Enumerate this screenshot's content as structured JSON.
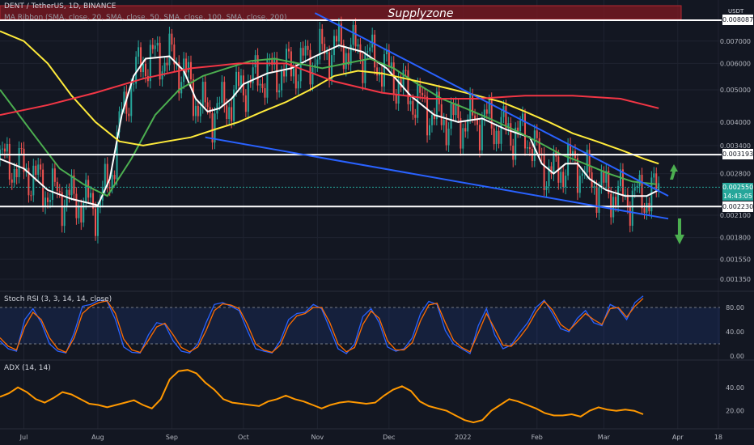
{
  "header": {
    "symbol_line": "DENT / TetherUS, 1D, BINANCE",
    "ribbon_line": "MA Ribbon (SMA, close, 20, SMA, close, 50, SMA, close, 100, SMA, close, 200)"
  },
  "supply_zone_label": "Supplyzone",
  "currency": "USDT",
  "rsi_title": "Stoch RSI (3, 3, 14, 14, close)",
  "adx_title": "ADX (14, 14)",
  "price_badge": {
    "value": "0.002550",
    "countdown": "14:43:05"
  },
  "level_labels": {
    "top": "0.008087",
    "upper": "0.003193",
    "lower": "0.002230"
  },
  "colors": {
    "up": "#26a69a",
    "down": "#ef5350",
    "sma20": "#ffffff",
    "sma50": "#4caf50",
    "sma100": "#ffeb3b",
    "sma200": "#f23645",
    "trend": "#2962ff",
    "stoch_k": "#2962ff",
    "stoch_d": "#ff6d00",
    "adx": "#ff9800",
    "supply": "#801922",
    "arrow": "#4caf50"
  },
  "chart_data": [
    {
      "type": "candlestick",
      "title": "DENT / TetherUS, 1D, BINANCE",
      "yscale": "log",
      "y_ticks": [
        "0.008087",
        "0.007000",
        "0.006000",
        "0.005000",
        "0.004000",
        "0.003400",
        "0.002800",
        "0.002550",
        "0.002100",
        "0.001800",
        "0.001550",
        "0.001350"
      ],
      "x_ticks": [
        "Jul",
        "Aug",
        "Sep",
        "Oct",
        "Nov",
        "Dec",
        "2022",
        "Feb",
        "Mar",
        "Apr",
        "18"
      ],
      "series": [
        {
          "name": "SMA 20",
          "kind": "line",
          "points": [
            [
              "Jun 21",
              0.0031
            ],
            [
              "Jul 1",
              0.0029
            ],
            [
              "Jul 11",
              0.0025
            ],
            [
              "Jul 21",
              0.00235
            ],
            [
              "Aug 1",
              0.00225
            ],
            [
              "Aug 6",
              0.0027
            ],
            [
              "Aug 11",
              0.0042
            ],
            [
              "Aug 16",
              0.0055
            ],
            [
              "Aug 21",
              0.0062
            ],
            [
              "Aug 31",
              0.0063
            ],
            [
              "Sep 6",
              0.0057
            ],
            [
              "Sep 11",
              0.0047
            ],
            [
              "Sep 16",
              0.0043
            ],
            [
              "Sep 21",
              0.0044
            ],
            [
              "Sep 26",
              0.0047
            ],
            [
              "Oct 1",
              0.0052
            ],
            [
              "Oct 11",
              0.0056
            ],
            [
              "Oct 21",
              0.0058
            ],
            [
              "Oct 31",
              0.0063
            ],
            [
              "Nov 10",
              0.0068
            ],
            [
              "Nov 20",
              0.0065
            ],
            [
              "Nov 30",
              0.0058
            ],
            [
              "Dec 10",
              0.0048
            ],
            [
              "Dec 20",
              0.0042
            ],
            [
              "Dec 30",
              0.004
            ],
            [
              "Jan 9",
              0.0041
            ],
            [
              "Jan 19",
              0.0038
            ],
            [
              "Jan 29",
              0.0036
            ],
            [
              "Feb 3",
              0.003
            ],
            [
              "Feb 8",
              0.0028
            ],
            [
              "Feb 13",
              0.003
            ],
            [
              "Feb 18",
              0.003
            ],
            [
              "Feb 23",
              0.0027
            ],
            [
              "Mar 2",
              0.0025
            ],
            [
              "Mar 10",
              0.0024
            ],
            [
              "Mar 19",
              0.0024
            ],
            [
              "Mar 24",
              0.0025
            ]
          ]
        },
        {
          "name": "SMA 50",
          "kind": "line",
          "points": [
            [
              "Jun 21",
              0.005
            ],
            [
              "Jul 6",
              0.0036
            ],
            [
              "Jul 16",
              0.0029
            ],
            [
              "Jul 26",
              0.0026
            ],
            [
              "Aug 5",
              0.0024
            ],
            [
              "Aug 15",
              0.0031
            ],
            [
              "Aug 25",
              0.0042
            ],
            [
              "Sep 4",
              0.005
            ],
            [
              "Sep 14",
              0.0055
            ],
            [
              "Sep 24",
              0.0058
            ],
            [
              "Oct 4",
              0.0061
            ],
            [
              "Oct 14",
              0.0062
            ],
            [
              "Oct 24",
              0.006
            ],
            [
              "Nov 3",
              0.0058
            ],
            [
              "Nov 13",
              0.006
            ],
            [
              "Nov 23",
              0.0062
            ],
            [
              "Dec 3",
              0.0058
            ],
            [
              "Dec 13",
              0.0052
            ],
            [
              "Dec 23",
              0.0047
            ],
            [
              "Jan 2",
              0.0044
            ],
            [
              "Jan 12",
              0.0041
            ],
            [
              "Jan 22",
              0.0038
            ],
            [
              "Feb 1",
              0.0035
            ],
            [
              "Feb 11",
              0.0032
            ],
            [
              "Feb 21",
              0.003
            ],
            [
              "Mar 3",
              0.0028
            ],
            [
              "Mar 13",
              0.00265
            ],
            [
              "Mar 23",
              0.0026
            ]
          ]
        },
        {
          "name": "SMA 100",
          "kind": "line",
          "points": [
            [
              "Jun 21",
              0.0075
            ],
            [
              "Jul 1",
              0.007
            ],
            [
              "Jul 11",
              0.006
            ],
            [
              "Jul 21",
              0.0048
            ],
            [
              "Jul 31",
              0.004
            ],
            [
              "Aug 10",
              0.0035
            ],
            [
              "Aug 20",
              0.0034
            ],
            [
              "Aug 30",
              0.0035
            ],
            [
              "Sep 9",
              0.0036
            ],
            [
              "Sep 19",
              0.0038
            ],
            [
              "Sep 29",
              0.004
            ],
            [
              "Oct 9",
              0.0043
            ],
            [
              "Oct 19",
              0.0046
            ],
            [
              "Oct 29",
              0.005
            ],
            [
              "Nov 8",
              0.0055
            ],
            [
              "Nov 18",
              0.0057
            ],
            [
              "Nov 28",
              0.0056
            ],
            [
              "Dec 8",
              0.0054
            ],
            [
              "Dec 18",
              0.0052
            ],
            [
              "Dec 28",
              0.005
            ],
            [
              "Jan 7",
              0.0048
            ],
            [
              "Jan 17",
              0.0046
            ],
            [
              "Jan 27",
              0.0043
            ],
            [
              "Feb 6",
              0.004
            ],
            [
              "Feb 16",
              0.0037
            ],
            [
              "Feb 26",
              0.0035
            ],
            [
              "Mar 8",
              0.0033
            ],
            [
              "Mar 18",
              0.0031
            ],
            [
              "Mar 24",
              0.003
            ]
          ]
        },
        {
          "name": "SMA 200",
          "kind": "line",
          "points": [
            [
              "Jun 21",
              0.0042
            ],
            [
              "Jul 11",
              0.0045
            ],
            [
              "Jul 31",
              0.0049
            ],
            [
              "Aug 20",
              0.0054
            ],
            [
              "Sep 9",
              0.0058
            ],
            [
              "Sep 29",
              0.006
            ],
            [
              "Oct 19",
              0.006
            ],
            [
              "Nov 8",
              0.0053
            ],
            [
              "Nov 28",
              0.0049
            ],
            [
              "Dec 18",
              0.0047
            ],
            [
              "Jan 7",
              0.0047
            ],
            [
              "Jan 27",
              0.0048
            ],
            [
              "Feb 16",
              0.0048
            ],
            [
              "Mar 8",
              0.0047
            ],
            [
              "Mar 24",
              0.0044
            ]
          ]
        }
      ],
      "horizontal_levels": [
        0.008087,
        0.003193,
        0.00223
      ],
      "trendlines": [
        {
          "from": [
            "Oct 31",
            0.0085
          ],
          "to": [
            "Mar 28",
            0.0024
          ]
        },
        {
          "from": [
            "Sep 15",
            0.0036
          ],
          "to": [
            "Mar 28",
            0.00205
          ]
        }
      ],
      "supply_zone": {
        "from": "Jun 21",
        "to": "Apr 1",
        "label": "Supplyzone"
      }
    },
    {
      "type": "line",
      "title": "Stoch RSI (3, 3, 14, 14, close)",
      "ylim": [
        0,
        100
      ],
      "y_ticks": [
        0,
        40,
        80
      ],
      "bands": [
        20,
        80
      ],
      "series": [
        {
          "name": "K",
          "values": [
            25,
            12,
            8,
            60,
            78,
            55,
            20,
            8,
            5,
            38,
            82,
            85,
            92,
            90,
            60,
            15,
            6,
            5,
            35,
            55,
            52,
            25,
            8,
            5,
            20,
            55,
            85,
            88,
            82,
            75,
            42,
            12,
            8,
            5,
            25,
            60,
            70,
            72,
            85,
            78,
            45,
            12,
            4,
            20,
            65,
            78,
            55,
            15,
            8,
            12,
            30,
            70,
            90,
            85,
            42,
            20,
            12,
            4,
            50,
            78,
            35,
            12,
            18,
            38,
            55,
            80,
            92,
            70,
            45,
            40,
            62,
            75,
            55,
            50,
            85,
            78,
            60,
            88,
            99
          ]
        },
        {
          "name": "D",
          "values": [
            30,
            16,
            10,
            48,
            72,
            60,
            30,
            12,
            6,
            30,
            70,
            82,
            88,
            91,
            70,
            28,
            10,
            6,
            26,
            48,
            54,
            35,
            14,
            7,
            15,
            42,
            75,
            86,
            84,
            78,
            52,
            20,
            10,
            6,
            18,
            50,
            66,
            70,
            80,
            80,
            55,
            20,
            7,
            14,
            52,
            74,
            62,
            25,
            10,
            10,
            22,
            58,
            84,
            87,
            55,
            26,
            14,
            7,
            38,
            70,
            45,
            18,
            16,
            30,
            48,
            72,
            90,
            76,
            52,
            42,
            56,
            70,
            60,
            52,
            78,
            80,
            64,
            82,
            95
          ]
        }
      ]
    },
    {
      "type": "line",
      "title": "ADX (14, 14)",
      "y_ticks": [
        20,
        40
      ],
      "series": [
        {
          "name": "ADX",
          "values": [
            32,
            35,
            40,
            36,
            30,
            27,
            31,
            36,
            34,
            30,
            26,
            25,
            23,
            25,
            27,
            29,
            25,
            22,
            30,
            47,
            54,
            55,
            52,
            44,
            38,
            30,
            27,
            26,
            25,
            24,
            28,
            30,
            33,
            30,
            28,
            25,
            22,
            25,
            27,
            28,
            27,
            26,
            27,
            33,
            38,
            41,
            37,
            28,
            24,
            22,
            20,
            16,
            12,
            10,
            12,
            20,
            25,
            30,
            28,
            25,
            22,
            18,
            16,
            16,
            17,
            15,
            20,
            23,
            21,
            20,
            21,
            20,
            17
          ]
        }
      ]
    }
  ]
}
